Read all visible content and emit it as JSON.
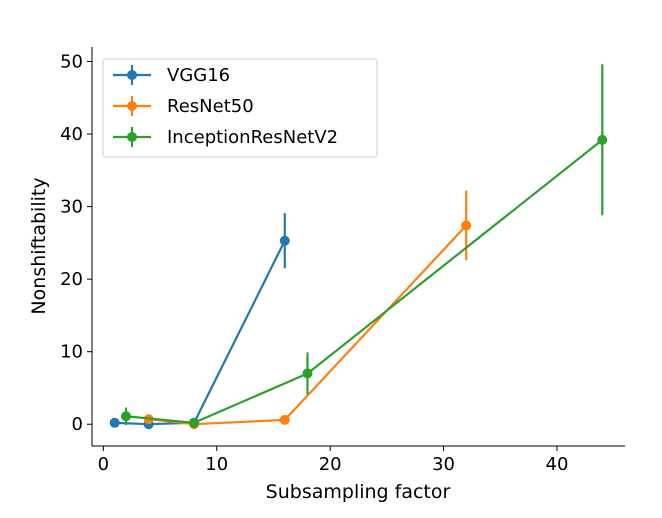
{
  "chart_data": {
    "type": "line",
    "xlabel": "Subsampling factor",
    "ylabel": "Nonshiftability",
    "xlim": [
      -1,
      46
    ],
    "ylim": [
      -3,
      52
    ],
    "xticks": [
      0,
      10,
      20,
      30,
      40
    ],
    "yticks": [
      0,
      10,
      20,
      30,
      40,
      50
    ],
    "xtick_labels": [
      "0",
      "10",
      "20",
      "30",
      "40"
    ],
    "ytick_labels": [
      "0",
      "10",
      "20",
      "30",
      "40",
      "50"
    ],
    "grid": false,
    "legend_position": "top-left",
    "series": [
      {
        "name": "VGG16",
        "color": "#1f77b4",
        "x": [
          1,
          4,
          8,
          16
        ],
        "y": [
          0.2,
          0.0,
          0.2,
          25.3
        ],
        "err": [
          0.2,
          0.3,
          0.3,
          3.8
        ]
      },
      {
        "name": "ResNet50",
        "color": "#ff7f0e",
        "x": [
          4,
          8,
          16,
          32
        ],
        "y": [
          0.7,
          0.0,
          0.6,
          27.4
        ],
        "err": [
          0.6,
          0.3,
          0.3,
          4.8
        ]
      },
      {
        "name": "InceptionResNetV2",
        "color": "#2ca02c",
        "x": [
          2,
          8,
          18,
          44
        ],
        "y": [
          1.1,
          0.2,
          7.0,
          39.2
        ],
        "err": [
          1.2,
          0.3,
          2.9,
          10.4
        ]
      }
    ]
  }
}
